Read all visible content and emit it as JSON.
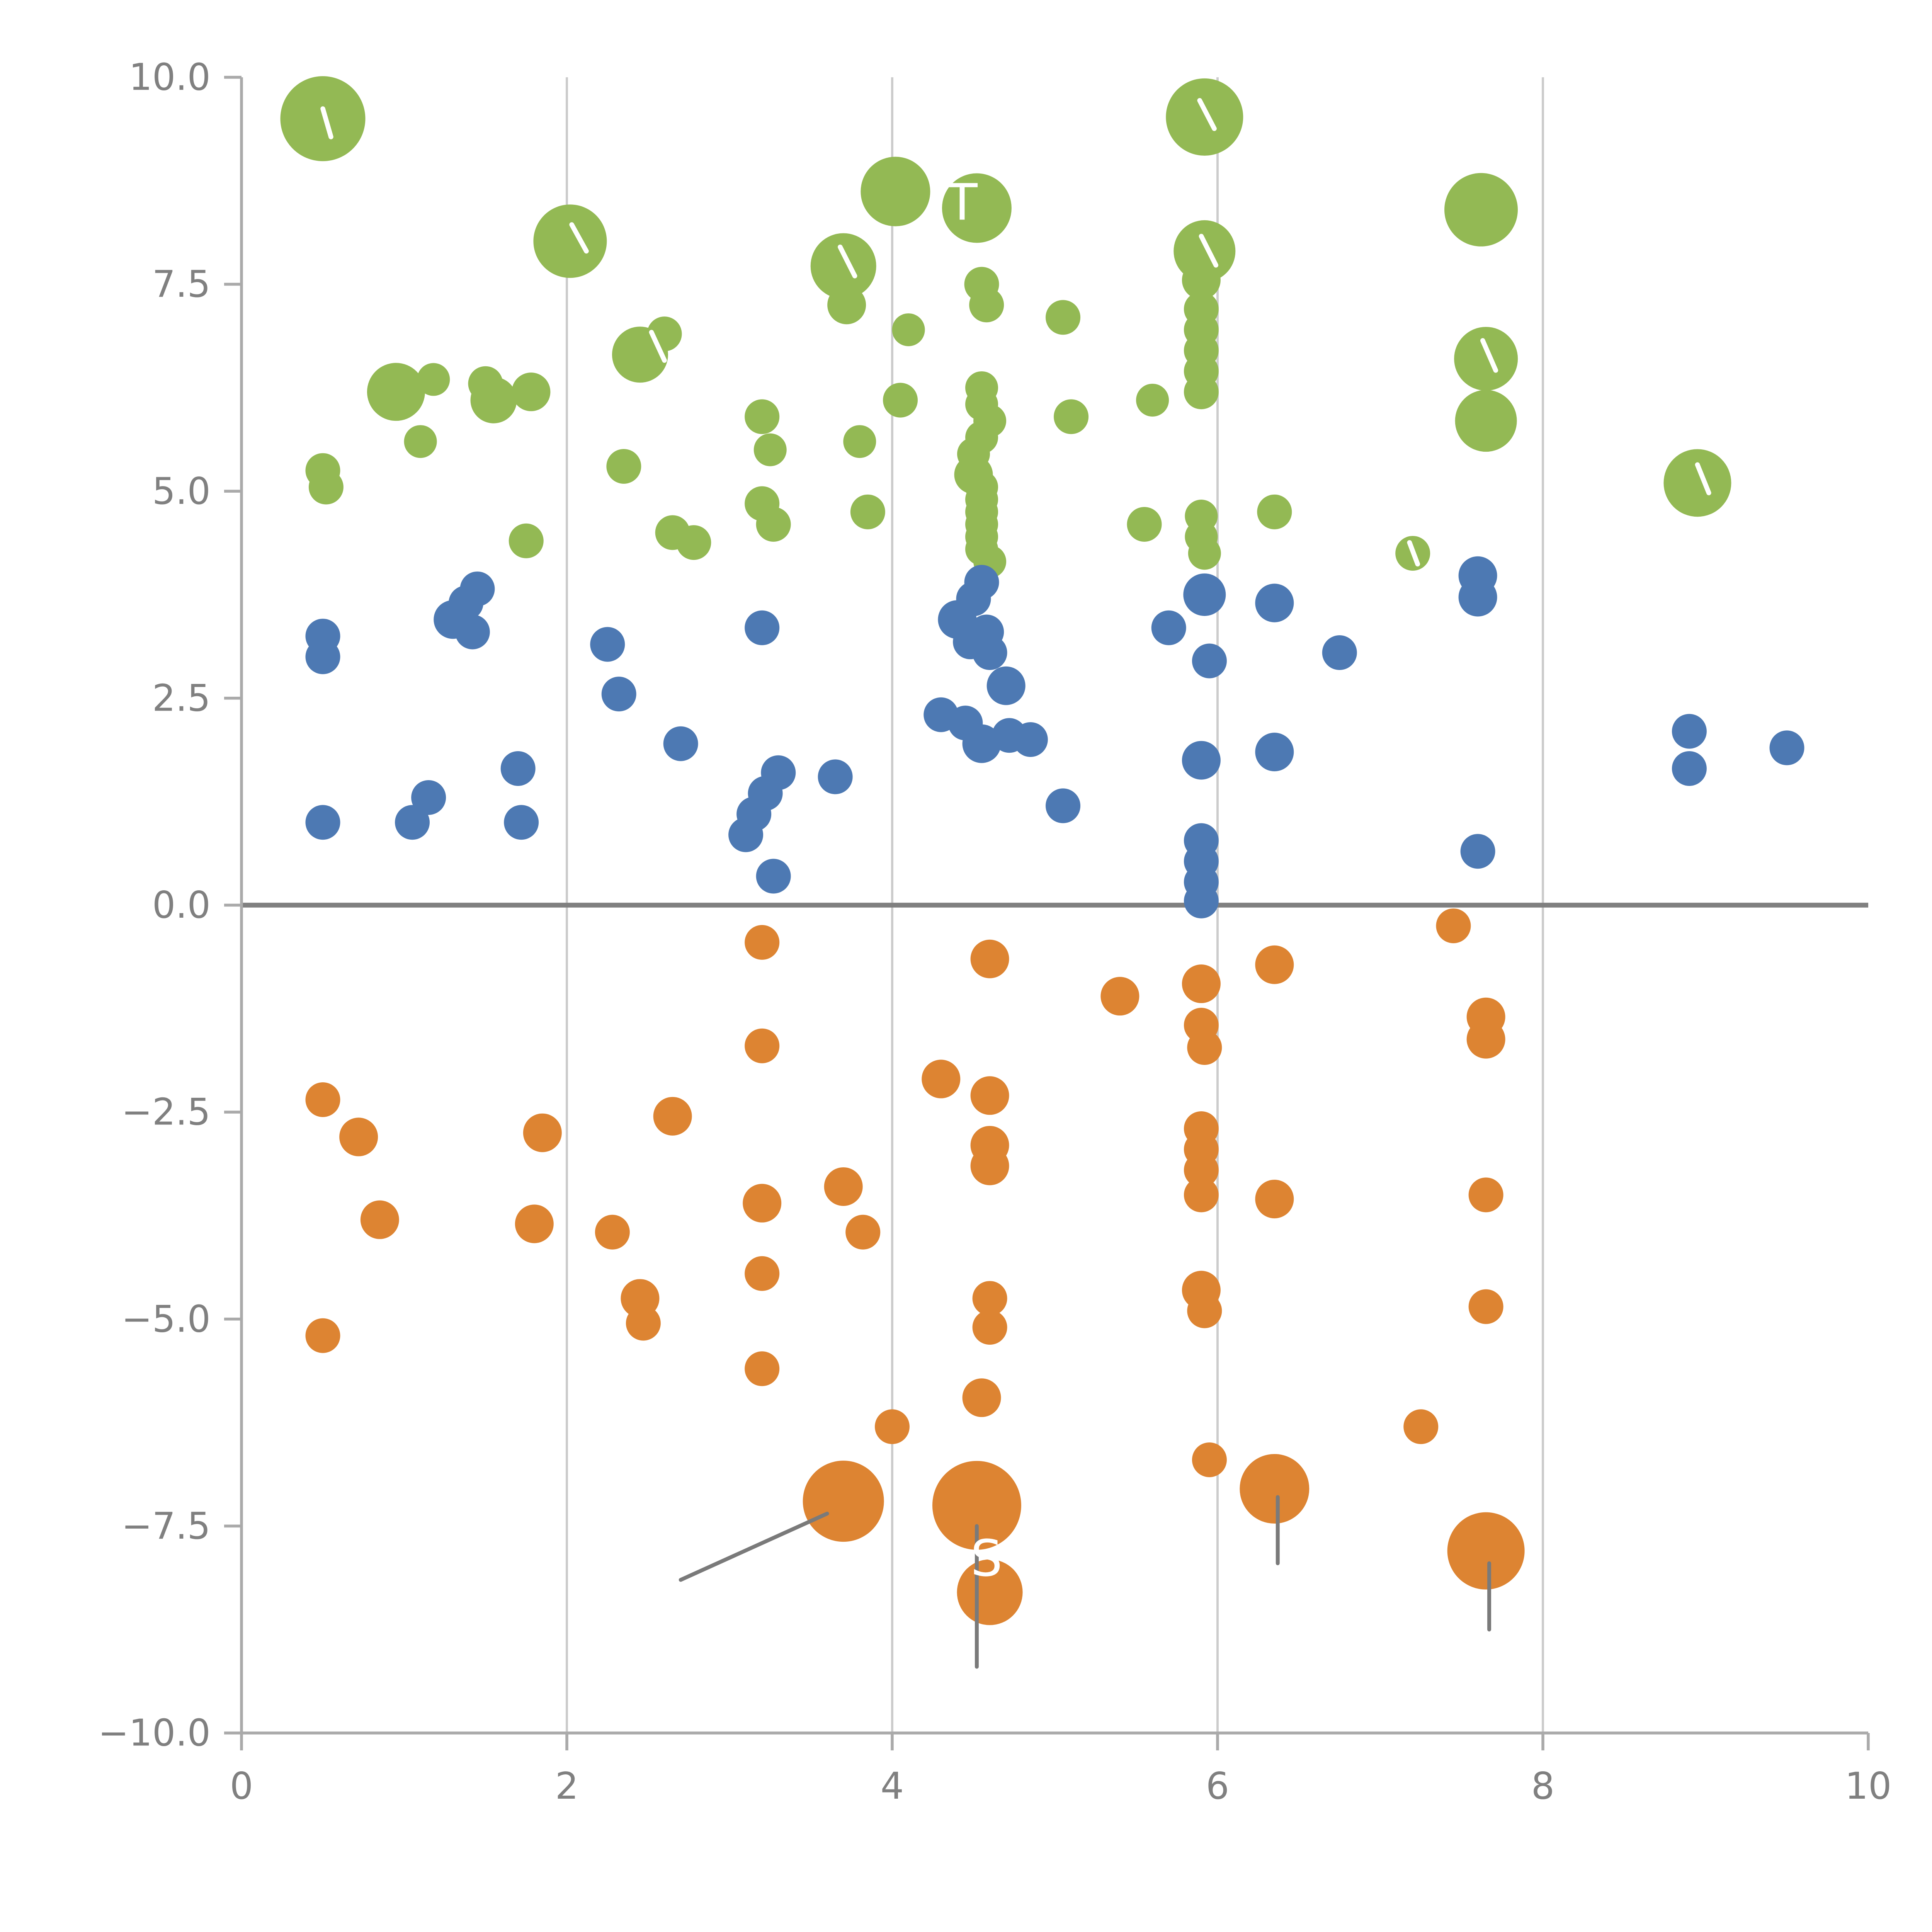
{
  "chart_data": {
    "type": "scatter",
    "title": "",
    "xlabel": "",
    "ylabel": "",
    "xlim": [
      0,
      10
    ],
    "ylim": [
      -10,
      10
    ],
    "grid": "vertical-only",
    "legend": "none",
    "gridlines_x": [
      2,
      4,
      6,
      8
    ],
    "zero_line_y": 0,
    "x_ticks": [
      {
        "value": 0,
        "label": "0"
      },
      {
        "value": 2,
        "label": "2"
      },
      {
        "value": 4,
        "label": "4"
      },
      {
        "value": 6,
        "label": "6"
      },
      {
        "value": 8,
        "label": "8"
      },
      {
        "value": 10,
        "label": "10"
      }
    ],
    "y_ticks": [
      {
        "value": 10.0,
        "label": "10.0"
      },
      {
        "value": 7.5,
        "label": "7.5"
      },
      {
        "value": 5.0,
        "label": "5.0"
      },
      {
        "value": 2.5,
        "label": "2.5"
      },
      {
        "value": 0.0,
        "label": "0.0"
      },
      {
        "value": -2.5,
        "label": "−2.5"
      },
      {
        "value": -5.0,
        "label": "−5.0"
      },
      {
        "value": -7.5,
        "label": "−7.5"
      },
      {
        "value": -10.0,
        "label": "−10.0"
      }
    ],
    "style": {
      "grid_color": "#cccccc",
      "axis_color": "#aaaaaa",
      "tick_label_color": "#808080",
      "zero_line_color": "#808080",
      "background": "#ffffff"
    },
    "series": [
      {
        "name": "green",
        "color": "#93b954",
        "points": [
          [
            0.5,
            9.5,
            22
          ],
          [
            5.92,
            9.52,
            20
          ],
          [
            4.02,
            8.62,
            18
          ],
          [
            4.52,
            8.42,
            18
          ],
          [
            7.62,
            8.4,
            19
          ],
          [
            2.02,
            8.02,
            19
          ],
          [
            3.7,
            7.72,
            17
          ],
          [
            5.92,
            7.9,
            16
          ],
          [
            3.72,
            7.25,
            10
          ],
          [
            4.1,
            6.95,
            8.5
          ],
          [
            4.55,
            7.5,
            9
          ],
          [
            4.58,
            7.25,
            9
          ],
          [
            5.05,
            7.1,
            9
          ],
          [
            5.9,
            7.55,
            10
          ],
          [
            5.9,
            7.2,
            9
          ],
          [
            5.9,
            6.95,
            9
          ],
          [
            5.9,
            6.7,
            9
          ],
          [
            5.9,
            6.45,
            9
          ],
          [
            5.9,
            6.2,
            9
          ],
          [
            0.95,
            6.2,
            15
          ],
          [
            1.18,
            6.35,
            8.5
          ],
          [
            1.5,
            6.3,
            9
          ],
          [
            1.55,
            6.1,
            12
          ],
          [
            1.78,
            6.2,
            10
          ],
          [
            2.45,
            6.65,
            14.5
          ],
          [
            2.6,
            6.9,
            9
          ],
          [
            3.2,
            5.9,
            9
          ],
          [
            4.05,
            6.1,
            9
          ],
          [
            5.1,
            5.9,
            9
          ],
          [
            5.6,
            6.1,
            8.5
          ],
          [
            7.65,
            6.6,
            16.5
          ],
          [
            7.65,
            5.85,
            16
          ],
          [
            0.5,
            5.25,
            9
          ],
          [
            0.52,
            5.05,
            9
          ],
          [
            1.1,
            5.6,
            8.5
          ],
          [
            2.35,
            5.3,
            9
          ],
          [
            3.25,
            5.5,
            8.5
          ],
          [
            3.8,
            5.6,
            8.5
          ],
          [
            8.95,
            5.1,
            17.5
          ],
          [
            4.55,
            6.25,
            8.5
          ],
          [
            4.55,
            6.05,
            8.5
          ],
          [
            4.6,
            5.85,
            8.5
          ],
          [
            4.55,
            5.65,
            8.5
          ],
          [
            4.5,
            5.45,
            8.5
          ],
          [
            4.5,
            5.2,
            10
          ],
          [
            4.55,
            5.05,
            8.5
          ],
          [
            4.55,
            4.9,
            8.5
          ],
          [
            4.55,
            4.75,
            8.5
          ],
          [
            4.55,
            4.6,
            8.5
          ],
          [
            4.55,
            4.45,
            8.5
          ],
          [
            4.55,
            4.3,
            8.5
          ],
          [
            4.6,
            4.15,
            8.5
          ],
          [
            3.2,
            4.85,
            9
          ],
          [
            3.27,
            4.6,
            9
          ],
          [
            3.85,
            4.75,
            9
          ],
          [
            2.65,
            4.5,
            9
          ],
          [
            2.78,
            4.38,
            9
          ],
          [
            1.75,
            4.4,
            9
          ],
          [
            5.55,
            4.6,
            9
          ],
          [
            5.9,
            4.7,
            8.5
          ],
          [
            5.9,
            4.45,
            8.5
          ],
          [
            5.92,
            4.25,
            8.5
          ],
          [
            6.35,
            4.75,
            9
          ],
          [
            7.2,
            4.25,
            9
          ]
        ]
      },
      {
        "name": "blue",
        "color": "#4d79b3",
        "points": [
          [
            0.5,
            3.25,
            9
          ],
          [
            0.5,
            3.0,
            9
          ],
          [
            1.3,
            3.45,
            10
          ],
          [
            1.38,
            3.65,
            9
          ],
          [
            1.45,
            3.82,
            9
          ],
          [
            1.42,
            3.3,
            9
          ],
          [
            2.25,
            3.15,
            9
          ],
          [
            2.32,
            2.55,
            9
          ],
          [
            3.2,
            3.35,
            9
          ],
          [
            4.4,
            3.45,
            10
          ],
          [
            4.5,
            3.7,
            9
          ],
          [
            4.55,
            3.9,
            9
          ],
          [
            4.48,
            3.18,
            9
          ],
          [
            4.6,
            3.05,
            9
          ],
          [
            4.58,
            3.3,
            9
          ],
          [
            4.7,
            2.65,
            10
          ],
          [
            4.3,
            2.3,
            9
          ],
          [
            4.45,
            2.2,
            9
          ],
          [
            4.55,
            1.95,
            10
          ],
          [
            4.72,
            2.05,
            9
          ],
          [
            4.85,
            2.0,
            9
          ],
          [
            5.7,
            3.35,
            9
          ],
          [
            5.92,
            3.75,
            11
          ],
          [
            5.95,
            2.95,
            9
          ],
          [
            6.35,
            3.65,
            10
          ],
          [
            6.75,
            3.05,
            9
          ],
          [
            7.6,
            3.98,
            10
          ],
          [
            7.6,
            3.72,
            10
          ],
          [
            0.5,
            1.0,
            9
          ],
          [
            1.05,
            1.0,
            9
          ],
          [
            1.15,
            1.3,
            9
          ],
          [
            1.7,
            1.65,
            9
          ],
          [
            1.72,
            1.0,
            9
          ],
          [
            2.7,
            1.95,
            9
          ],
          [
            3.15,
            1.1,
            9
          ],
          [
            3.1,
            0.85,
            9
          ],
          [
            3.22,
            1.35,
            9
          ],
          [
            3.3,
            1.6,
            9
          ],
          [
            3.27,
            0.35,
            9
          ],
          [
            3.65,
            1.55,
            9
          ],
          [
            5.05,
            1.2,
            9
          ],
          [
            5.9,
            1.75,
            10
          ],
          [
            5.9,
            0.78,
            9
          ],
          [
            5.9,
            0.53,
            9
          ],
          [
            5.9,
            0.28,
            9
          ],
          [
            5.9,
            0.05,
            9
          ],
          [
            6.35,
            1.85,
            10
          ],
          [
            7.6,
            0.65,
            9
          ],
          [
            8.9,
            2.1,
            9
          ],
          [
            8.9,
            1.65,
            9
          ],
          [
            9.5,
            1.9,
            9
          ]
        ]
      },
      {
        "name": "orange",
        "color": "#dd8432",
        "points": [
          [
            7.45,
            -0.25,
            9
          ],
          [
            3.2,
            -0.45,
            9
          ],
          [
            4.6,
            -0.65,
            10
          ],
          [
            6.35,
            -0.72,
            10
          ],
          [
            5.9,
            -0.95,
            10
          ],
          [
            5.4,
            -1.1,
            10
          ],
          [
            5.9,
            -1.45,
            9
          ],
          [
            5.92,
            -1.72,
            9
          ],
          [
            7.65,
            -1.35,
            10
          ],
          [
            7.65,
            -1.62,
            10
          ],
          [
            3.2,
            -1.7,
            9
          ],
          [
            4.3,
            -2.1,
            10
          ],
          [
            4.6,
            -2.3,
            10
          ],
          [
            0.5,
            -2.35,
            9
          ],
          [
            0.72,
            -2.8,
            10
          ],
          [
            1.85,
            -2.75,
            10
          ],
          [
            2.65,
            -2.55,
            10
          ],
          [
            4.6,
            -2.9,
            10
          ],
          [
            4.6,
            -3.15,
            10
          ],
          [
            5.9,
            -2.7,
            9
          ],
          [
            5.9,
            -2.95,
            9
          ],
          [
            5.9,
            -3.2,
            9
          ],
          [
            5.9,
            -3.5,
            9
          ],
          [
            3.7,
            -3.4,
            10
          ],
          [
            3.2,
            -3.6,
            10
          ],
          [
            0.85,
            -3.8,
            10
          ],
          [
            1.8,
            -3.85,
            10
          ],
          [
            2.28,
            -3.95,
            9
          ],
          [
            3.82,
            -3.95,
            9
          ],
          [
            6.35,
            -3.55,
            10
          ],
          [
            7.65,
            -3.5,
            9
          ],
          [
            2.45,
            -4.75,
            10
          ],
          [
            2.47,
            -5.05,
            9
          ],
          [
            3.2,
            -4.45,
            9
          ],
          [
            4.6,
            -4.75,
            9
          ],
          [
            4.6,
            -5.1,
            9
          ],
          [
            5.9,
            -4.65,
            10
          ],
          [
            5.92,
            -4.9,
            9
          ],
          [
            7.65,
            -4.85,
            9
          ],
          [
            0.5,
            -5.2,
            9
          ],
          [
            3.2,
            -5.6,
            9
          ],
          [
            4.55,
            -5.95,
            10
          ],
          [
            4.0,
            -6.3,
            9
          ],
          [
            7.25,
            -6.3,
            9
          ],
          [
            5.95,
            -6.7,
            9
          ],
          [
            3.7,
            -7.2,
            21
          ],
          [
            4.52,
            -7.25,
            23
          ],
          [
            6.35,
            -7.05,
            18
          ],
          [
            7.65,
            -7.8,
            20
          ],
          [
            4.6,
            -8.3,
            17
          ]
        ]
      }
    ],
    "annotations": {
      "lines": [
        {
          "x1": 2.7,
          "y1": -8.15,
          "x2": 3.6,
          "y2": -7.35,
          "color": "#7a7a7a",
          "width": 2
        },
        {
          "x1": 4.52,
          "y1": -7.5,
          "x2": 4.52,
          "y2": -9.2,
          "color": "#7a7a7a",
          "width": 2
        },
        {
          "x1": 6.37,
          "y1": -7.15,
          "x2": 6.37,
          "y2": -7.95,
          "color": "#7a7a7a",
          "width": 2
        },
        {
          "x1": 7.67,
          "y1": -7.95,
          "x2": 7.67,
          "y2": -8.75,
          "color": "#7a7a7a",
          "width": 2
        },
        {
          "x1": 0.5,
          "y1": 9.62,
          "x2": 0.55,
          "y2": 9.28,
          "color": "#ffffff",
          "width": 2.5
        },
        {
          "x1": 2.03,
          "y1": 8.22,
          "x2": 2.12,
          "y2": 7.9,
          "color": "#ffffff",
          "width": 2.5
        },
        {
          "x1": 3.68,
          "y1": 7.95,
          "x2": 3.77,
          "y2": 7.6,
          "color": "#ffffff",
          "width": 2.5
        },
        {
          "x1": 5.89,
          "y1": 9.72,
          "x2": 5.98,
          "y2": 9.38,
          "color": "#ffffff",
          "width": 2.5
        },
        {
          "x1": 5.9,
          "y1": 8.08,
          "x2": 5.99,
          "y2": 7.73,
          "color": "#ffffff",
          "width": 2.5
        },
        {
          "x1": 7.63,
          "y1": 6.82,
          "x2": 7.71,
          "y2": 6.46,
          "color": "#ffffff",
          "width": 2.5
        },
        {
          "x1": 8.95,
          "y1": 5.32,
          "x2": 9.02,
          "y2": 4.98,
          "color": "#ffffff",
          "width": 2.5
        },
        {
          "x1": 7.18,
          "y1": 4.38,
          "x2": 7.23,
          "y2": 4.12,
          "color": "#ffffff",
          "width": 2.5
        },
        {
          "x1": 2.52,
          "y1": 6.92,
          "x2": 2.6,
          "y2": 6.58,
          "color": "#ffffff",
          "width": 2.5
        }
      ],
      "labels": [
        {
          "text": "T",
          "x": 4.43,
          "y": 8.28,
          "color": "#ffffff",
          "size": 26
        },
        {
          "text": "S",
          "x": 4.58,
          "y": -8.1,
          "color": "#ffffff",
          "size": 26
        }
      ]
    }
  }
}
